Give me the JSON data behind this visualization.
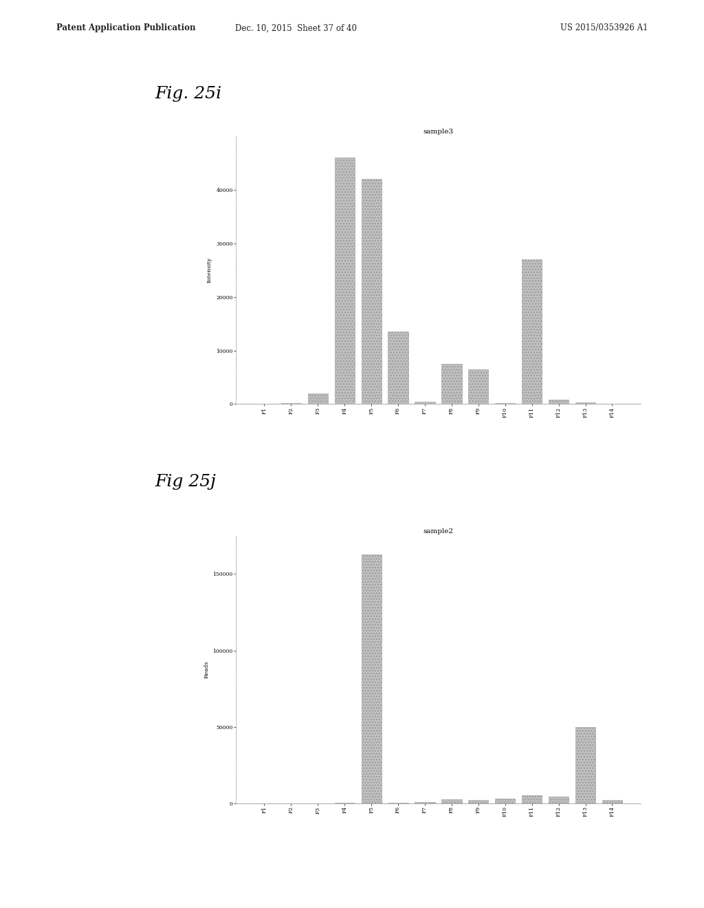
{
  "fig_i_label": "Fig. 25i",
  "fig_j_label": "Fig 25j",
  "chart_i_title": "sample3",
  "chart_j_title": "sample2",
  "categories": [
    "F1",
    "F2",
    "F3",
    "F4",
    "F5",
    "F6",
    "F7",
    "F8",
    "F9",
    "F10",
    "F11",
    "F12",
    "F13",
    "F14"
  ],
  "values_i": [
    100,
    200,
    2000,
    46000,
    42000,
    13500,
    400,
    7500,
    6500,
    200,
    27000,
    800,
    300,
    100
  ],
  "values_j": [
    100,
    200,
    300,
    400,
    163000,
    500,
    1200,
    2800,
    2200,
    3200,
    5500,
    4500,
    50000,
    2500
  ],
  "ylim_i": [
    0,
    50000
  ],
  "ylim_j": [
    0,
    175000
  ],
  "yticks_i": [
    0,
    10000,
    20000,
    30000,
    40000
  ],
  "yticks_j": [
    0,
    50000,
    100000,
    150000
  ],
  "ytick_labels_i": [
    "0",
    "10000",
    "20000",
    "30000",
    "40000"
  ],
  "ytick_labels_j": [
    "0",
    "50000",
    "100000",
    "150000"
  ],
  "bar_color": "#c0c0c0",
  "bar_edge_color": "#999999",
  "background_color": "#ffffff",
  "ylabel_i": "Intensity",
  "ylabel_j": "Reads",
  "header_left": "Patent Application Publication",
  "header_mid": "Dec. 10, 2015  Sheet 37 of 40",
  "header_right": "US 2015/0353926 A1"
}
